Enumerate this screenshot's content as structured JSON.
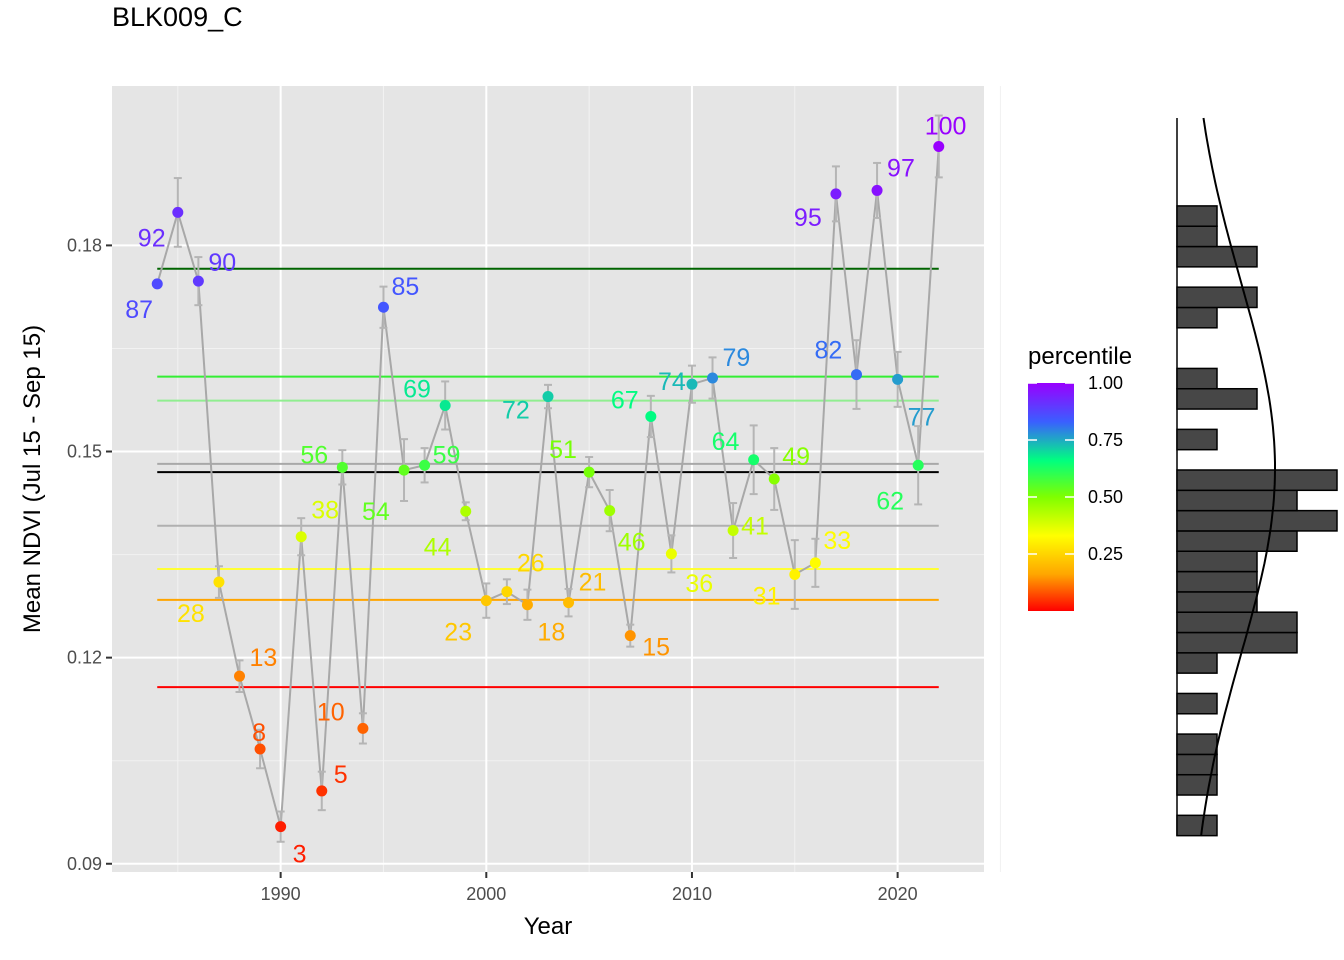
{
  "chart_data": {
    "type": "scatter",
    "title": "BLK009_C",
    "xlabel": "Year",
    "ylabel": "Mean NDVI (Jul 15 - Sep 15)",
    "xlim": [
      1981.8,
      2024.2
    ],
    "ylim": [
      0.0888,
      0.2032
    ],
    "x_ticks": [
      1990,
      2000,
      2010,
      2020
    ],
    "y_ticks": [
      0.09,
      0.12,
      0.15,
      0.18
    ],
    "y_tick_labels": [
      "0.09",
      "0.12",
      "0.15",
      "0.18"
    ],
    "grid": true,
    "panel_background": "#e5e5e5",
    "line_color": "#a8a8a8",
    "errorbar_color": "#b5b5b5",
    "points": [
      {
        "year": 1984,
        "ndvi": 0.1744,
        "err": 0.0,
        "percentile": 87
      },
      {
        "year": 1985,
        "ndvi": 0.1848,
        "err": 0.005,
        "percentile": 92
      },
      {
        "year": 1986,
        "ndvi": 0.1748,
        "err": 0.0035,
        "percentile": 90
      },
      {
        "year": 1987,
        "ndvi": 0.131,
        "err": 0.0023,
        "percentile": 28
      },
      {
        "year": 1988,
        "ndvi": 0.1173,
        "err": 0.0023,
        "percentile": 13
      },
      {
        "year": 1989,
        "ndvi": 0.1067,
        "err": 0.0028,
        "percentile": 8
      },
      {
        "year": 1990,
        "ndvi": 0.0954,
        "err": 0.0022,
        "percentile": 3
      },
      {
        "year": 1991,
        "ndvi": 0.1376,
        "err": 0.0027,
        "percentile": 38
      },
      {
        "year": 1992,
        "ndvi": 0.1006,
        "err": 0.0028,
        "percentile": 5
      },
      {
        "year": 1993,
        "ndvi": 0.1477,
        "err": 0.0025,
        "percentile": 56
      },
      {
        "year": 1994,
        "ndvi": 0.1097,
        "err": 0.0022,
        "percentile": 10
      },
      {
        "year": 1995,
        "ndvi": 0.171,
        "err": 0.003,
        "percentile": 85
      },
      {
        "year": 1996,
        "ndvi": 0.1473,
        "err": 0.0045,
        "percentile": 54
      },
      {
        "year": 1997,
        "ndvi": 0.148,
        "err": 0.0025,
        "percentile": 59
      },
      {
        "year": 1998,
        "ndvi": 0.1567,
        "err": 0.0035,
        "percentile": 69
      },
      {
        "year": 1999,
        "ndvi": 0.1413,
        "err": 0.0013,
        "percentile": 44
      },
      {
        "year": 2000,
        "ndvi": 0.1283,
        "err": 0.0025,
        "percentile": 23
      },
      {
        "year": 2001,
        "ndvi": 0.1296,
        "err": 0.0018,
        "percentile": 26
      },
      {
        "year": 2002,
        "ndvi": 0.1277,
        "err": 0.0022,
        "percentile": 18
      },
      {
        "year": 2003,
        "ndvi": 0.158,
        "err": 0.0017,
        "percentile": 72
      },
      {
        "year": 2004,
        "ndvi": 0.128,
        "err": 0.002,
        "percentile": 21
      },
      {
        "year": 2005,
        "ndvi": 0.147,
        "err": 0.0022,
        "percentile": 51
      },
      {
        "year": 2006,
        "ndvi": 0.1414,
        "err": 0.003,
        "percentile": 46
      },
      {
        "year": 2007,
        "ndvi": 0.1232,
        "err": 0.0016,
        "percentile": 15
      },
      {
        "year": 2008,
        "ndvi": 0.1551,
        "err": 0.003,
        "percentile": 67
      },
      {
        "year": 2009,
        "ndvi": 0.1351,
        "err": 0.0027,
        "percentile": 36
      },
      {
        "year": 2010,
        "ndvi": 0.1598,
        "err": 0.0027,
        "percentile": 74
      },
      {
        "year": 2011,
        "ndvi": 0.1607,
        "err": 0.003,
        "percentile": 79
      },
      {
        "year": 2012,
        "ndvi": 0.1385,
        "err": 0.004,
        "percentile": 41
      },
      {
        "year": 2013,
        "ndvi": 0.1488,
        "err": 0.005,
        "percentile": 64
      },
      {
        "year": 2014,
        "ndvi": 0.146,
        "err": 0.0045,
        "percentile": 49
      },
      {
        "year": 2015,
        "ndvi": 0.1321,
        "err": 0.005,
        "percentile": 31
      },
      {
        "year": 2016,
        "ndvi": 0.1338,
        "err": 0.0035,
        "percentile": 33
      },
      {
        "year": 2017,
        "ndvi": 0.1875,
        "err": 0.004,
        "percentile": 95
      },
      {
        "year": 2018,
        "ndvi": 0.1612,
        "err": 0.005,
        "percentile": 82
      },
      {
        "year": 2019,
        "ndvi": 0.188,
        "err": 0.004,
        "percentile": 97
      },
      {
        "year": 2020,
        "ndvi": 0.1605,
        "err": 0.004,
        "percentile": 77
      },
      {
        "year": 2021,
        "ndvi": 0.148,
        "err": 0.0057,
        "percentile": 62
      },
      {
        "year": 2022,
        "ndvi": 0.1944,
        "err": 0.0045,
        "percentile": 100
      }
    ],
    "reference_lines": [
      {
        "y": 0.1766,
        "color": "#006400"
      },
      {
        "y": 0.1609,
        "color": "#33ee33"
      },
      {
        "y": 0.1574,
        "color": "#90ee90"
      },
      {
        "y": 0.1482,
        "color": "#a8a8a8"
      },
      {
        "y": 0.147,
        "color": "#000000"
      },
      {
        "y": 0.1392,
        "color": "#b0b0b0"
      },
      {
        "y": 0.1329,
        "color": "#ffff33"
      },
      {
        "y": 0.1284,
        "color": "#ffa500"
      },
      {
        "y": 0.1157,
        "color": "#ff0000"
      }
    ],
    "legend": {
      "title": "percentile",
      "position": "right",
      "ticks": [
        {
          "value": 1.0,
          "label": "1.00"
        },
        {
          "value": 0.75,
          "label": "0.75"
        },
        {
          "value": 0.5,
          "label": "0.50"
        },
        {
          "value": 0.25,
          "label": "0.25"
        }
      ],
      "colors": [
        "#ff0000",
        "#ffa500",
        "#ffff00",
        "#7fff00",
        "#00ff7f",
        "#3a5fff",
        "#9900ff"
      ]
    },
    "histogram": {
      "orientation": "horizontal",
      "bin_width": 0.0029,
      "bins": [
        {
          "y": 0.0945,
          "count": 1
        },
        {
          "y": 0.0974,
          "count": 0
        },
        {
          "y": 0.1003,
          "count": 1
        },
        {
          "y": 0.1032,
          "count": 1
        },
        {
          "y": 0.1061,
          "count": 1
        },
        {
          "y": 0.109,
          "count": 0
        },
        {
          "y": 0.1119,
          "count": 1
        },
        {
          "y": 0.1148,
          "count": 0
        },
        {
          "y": 0.1177,
          "count": 1
        },
        {
          "y": 0.1206,
          "count": 3
        },
        {
          "y": 0.1235,
          "count": 3
        },
        {
          "y": 0.1264,
          "count": 2
        },
        {
          "y": 0.1293,
          "count": 2
        },
        {
          "y": 0.1322,
          "count": 2
        },
        {
          "y": 0.1351,
          "count": 3
        },
        {
          "y": 0.138,
          "count": 4
        },
        {
          "y": 0.1409,
          "count": 3
        },
        {
          "y": 0.1438,
          "count": 4
        },
        {
          "y": 0.1467,
          "count": 0
        },
        {
          "y": 0.1496,
          "count": 1
        },
        {
          "y": 0.1525,
          "count": 0
        },
        {
          "y": 0.1554,
          "count": 2
        },
        {
          "y": 0.1583,
          "count": 1
        },
        {
          "y": 0.1612,
          "count": 0
        },
        {
          "y": 0.1641,
          "count": 0
        },
        {
          "y": 0.167,
          "count": 1
        },
        {
          "y": 0.1699,
          "count": 2
        },
        {
          "y": 0.1728,
          "count": 0
        },
        {
          "y": 0.1757,
          "count": 2
        },
        {
          "y": 0.1786,
          "count": 1
        },
        {
          "y": 0.1815,
          "count": 1
        }
      ],
      "density_mean": 0.1455,
      "density_sd": 0.0265
    }
  }
}
